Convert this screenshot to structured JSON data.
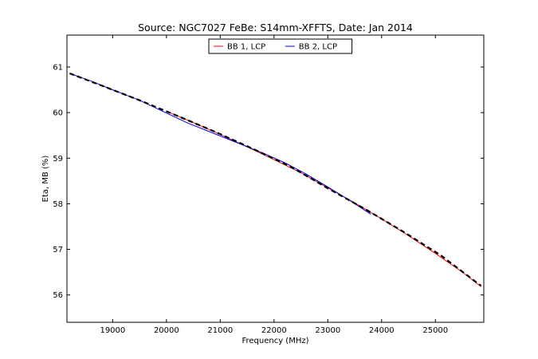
{
  "chart_data": {
    "type": "line",
    "title": "Source: NGC7027 FeBe: S14mm-XFFTS, Date: Jan 2014",
    "xlabel": "Frequency (MHz)",
    "ylabel": "Eta, MB (%)",
    "xlim": [
      18150,
      25900
    ],
    "ylim": [
      55.4,
      61.7
    ],
    "xticks": [
      19000,
      20000,
      21000,
      22000,
      23000,
      24000,
      25000
    ],
    "yticks": [
      56,
      57,
      58,
      59,
      60,
      61
    ],
    "grid": false,
    "legend_position": "top-center",
    "series": [
      {
        "name": "BB 1, LCP",
        "color": "#ff0000",
        "style": "solid",
        "x": [
          20000,
          20500,
          21000,
          21500,
          22000,
          22500,
          23000,
          23500,
          24000,
          24500,
          25000,
          25500,
          25850
        ],
        "y": [
          60.03,
          59.78,
          59.52,
          59.25,
          58.97,
          58.68,
          58.35,
          58.02,
          57.67,
          57.3,
          56.91,
          56.5,
          56.18
        ]
      },
      {
        "name": "BB 2, LCP",
        "color": "#0000ff",
        "style": "solid",
        "x": [
          18200,
          18600,
          19000,
          19500,
          20000,
          20400,
          21800,
          22200,
          22600,
          23000,
          23400,
          23800
        ],
        "y": [
          60.86,
          60.69,
          60.5,
          60.27,
          59.99,
          59.77,
          59.11,
          58.9,
          58.65,
          58.37,
          58.08,
          57.77
        ]
      },
      {
        "name": "",
        "color": "#000000",
        "style": "dashed",
        "x": [
          18200,
          18800,
          19500,
          20200,
          20900,
          21600,
          22300,
          23000,
          23700,
          24400,
          25100,
          25850
        ],
        "y": [
          60.86,
          60.59,
          60.27,
          59.93,
          59.58,
          59.21,
          58.82,
          58.34,
          57.88,
          57.39,
          56.87,
          56.2
        ]
      }
    ]
  }
}
